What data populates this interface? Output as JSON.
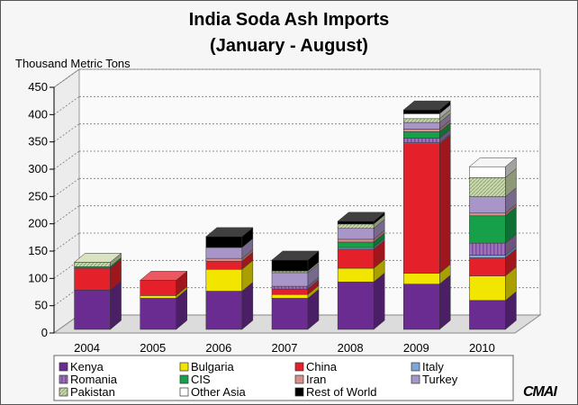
{
  "chart_data": {
    "type": "bar",
    "stacked": true,
    "three_d": true,
    "title": "India Soda Ash Imports",
    "subtitle": "(January - August)",
    "ylabel": "Thousand Metric Tons",
    "xlabel": "",
    "ylim": [
      0,
      450
    ],
    "yticks": [
      0,
      50,
      100,
      150,
      200,
      250,
      300,
      350,
      400,
      450
    ],
    "grid": true,
    "legend_position": "bottom",
    "categories": [
      "2004",
      "2005",
      "2006",
      "2007",
      "2008",
      "2009",
      "2010"
    ],
    "series": [
      {
        "name": "Kenya",
        "color": "#6a2c91",
        "values": [
          72,
          57,
          70,
          57,
          87,
          83,
          53
        ]
      },
      {
        "name": "Bulgaria",
        "color": "#f2e500",
        "values": [
          0,
          5,
          40,
          7,
          25,
          20,
          45
        ]
      },
      {
        "name": "China",
        "color": "#e4202a",
        "values": [
          40,
          28,
          15,
          10,
          35,
          237,
          33
        ]
      },
      {
        "name": "Italy",
        "color": "#7fa7d9",
        "values": [
          0,
          0,
          0,
          0,
          3,
          2,
          5
        ]
      },
      {
        "name": "Romania",
        "color": "#9b76b4",
        "values": [
          0,
          0,
          0,
          5,
          0,
          8,
          22
        ]
      },
      {
        "name": "CIS",
        "color": "#17a04a",
        "values": [
          3,
          0,
          0,
          0,
          10,
          12,
          50
        ]
      },
      {
        "name": "Iran",
        "color": "#d9908b",
        "values": [
          0,
          0,
          5,
          0,
          5,
          5,
          5
        ]
      },
      {
        "name": "Turkey",
        "color": "#a996c8",
        "values": [
          0,
          0,
          20,
          25,
          20,
          12,
          30
        ]
      },
      {
        "name": "Pakistan",
        "color": "#c9d9ad",
        "values": [
          8,
          0,
          0,
          3,
          8,
          7,
          35
        ]
      },
      {
        "name": "Other Asia",
        "color": "#ffffff",
        "values": [
          0,
          0,
          0,
          0,
          0,
          9,
          20
        ]
      },
      {
        "name": "Rest of World",
        "color": "#000000",
        "values": [
          0,
          0,
          20,
          20,
          5,
          7,
          0
        ]
      }
    ]
  },
  "logo_text": "CMAI"
}
